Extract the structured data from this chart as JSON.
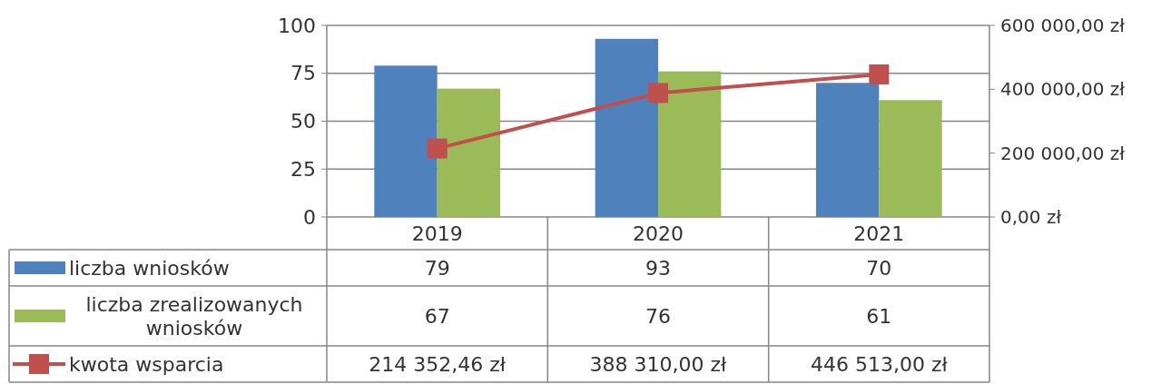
{
  "chart_data": {
    "type": "bar",
    "categories": [
      "2019",
      "2020",
      "2021"
    ],
    "series": [
      {
        "name": "liczba wniosków",
        "color": "#4f81bd",
        "values": [
          79,
          93,
          70
        ],
        "value_labels": [
          "79",
          "93",
          "70"
        ]
      },
      {
        "name": "liczba zrealizowanych wniosków",
        "color": "#9bbb59",
        "values": [
          67,
          76,
          61
        ],
        "value_labels": [
          "67",
          "76",
          "61"
        ]
      },
      {
        "name": "kwota wsparcia",
        "type": "line",
        "axis": "y2",
        "color": "#c0504d",
        "marker": "square",
        "values": [
          214352.46,
          388310,
          446513
        ],
        "value_labels": [
          "214 352,46 zł",
          "388 310,00 zł",
          "446 513,00 zł"
        ]
      }
    ],
    "ylim": [
      0,
      100
    ],
    "yticks": [
      0,
      25,
      50,
      75,
      100
    ],
    "y2lim": [
      0,
      600000
    ],
    "y2ticks": [
      {
        "value": 0,
        "label": "0,00 zł"
      },
      {
        "value": 200000,
        "label": "200 000,00 zł"
      },
      {
        "value": 400000,
        "label": "400 000,00 zł"
      },
      {
        "value": 600000,
        "label": "600 000,00 zł"
      }
    ],
    "grid": "y",
    "legend": "bottom"
  }
}
